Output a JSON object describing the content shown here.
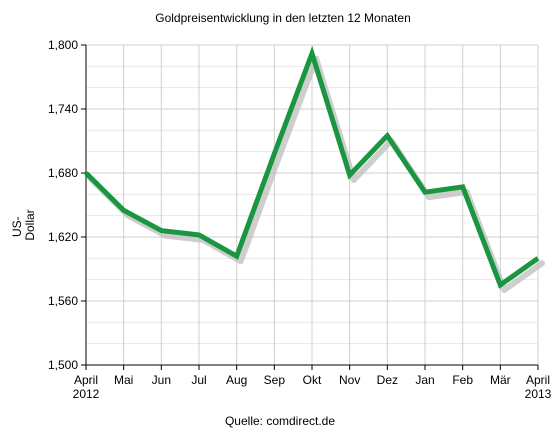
{
  "chart_data": {
    "type": "line",
    "title": "Goldpreisentwicklung in den letzten 12 Monaten",
    "ylabel_line1": "US-",
    "ylabel_line2": "Dollar",
    "source": "Quelle: comdirect.de",
    "categories": [
      "April 2012",
      "Mai",
      "Jun",
      "Jul",
      "Aug",
      "Sep",
      "Okt",
      "Nov",
      "Dez",
      "Jan",
      "Feb",
      "Mär",
      "April 2013"
    ],
    "tick_labels": [
      [
        "April",
        "2012"
      ],
      [
        "Mai"
      ],
      [
        "Jun"
      ],
      [
        "Jul"
      ],
      [
        "Aug"
      ],
      [
        "Sep"
      ],
      [
        "Okt"
      ],
      [
        "Nov"
      ],
      [
        "Dez"
      ],
      [
        "Jan"
      ],
      [
        "Feb"
      ],
      [
        "Mär"
      ],
      [
        "April",
        "2013"
      ]
    ],
    "series": [
      {
        "values": [
          1680,
          1645,
          1626,
          1622,
          1602,
          1698,
          1792,
          1678,
          1715,
          1662,
          1667,
          1575,
          1600
        ],
        "color": "#1a9641"
      }
    ],
    "ylim": [
      1500,
      1800
    ],
    "yticks": [
      1500,
      1560,
      1620,
      1680,
      1740,
      1800
    ],
    "ytick_labels": [
      "1,500",
      "1,560",
      "1,620",
      "1,680",
      "1,740",
      "1,800"
    ],
    "grid": true
  }
}
